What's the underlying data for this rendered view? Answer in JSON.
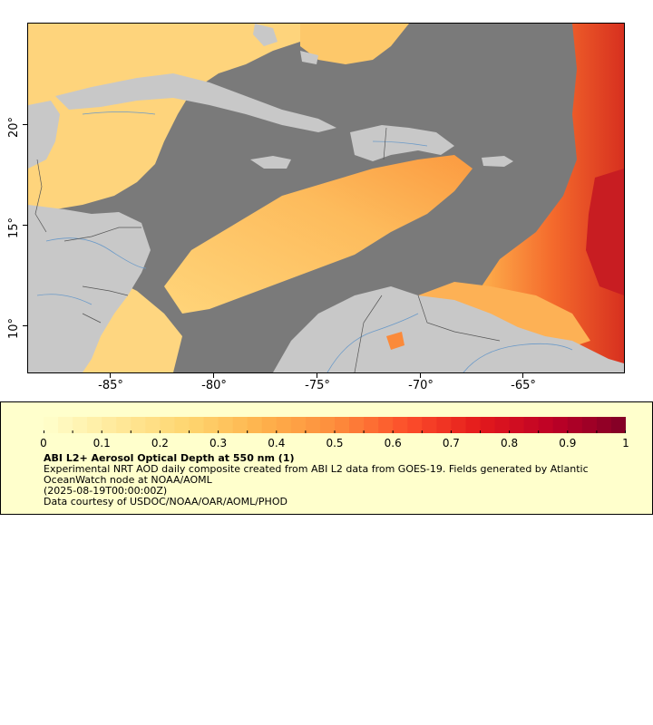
{
  "map": {
    "x_ticks": [
      "-85°",
      "-80°",
      "-75°",
      "-70°",
      "-65°"
    ],
    "y_ticks": [
      "20°",
      "15°",
      "10°"
    ],
    "colors": {
      "ocean_nodata": "#7a7a7a",
      "land": "#c8c8c8",
      "low": "#ffe99a",
      "mid": "#fbb14a",
      "high": "#e0301e",
      "max": "#7f0026",
      "rivers": "#6b9ac8",
      "borders": "#666666"
    }
  },
  "legend": {
    "colorbar_labels": [
      "0",
      "0.1",
      "0.2",
      "0.3",
      "0.4",
      "0.5",
      "0.6",
      "0.7",
      "0.8",
      "0.9",
      "1"
    ],
    "colorbar_range": [
      0,
      1
    ],
    "colorbar_colors": [
      "#ffffcc",
      "#ffe99a",
      "#fed56f",
      "#feb24c",
      "#fd8d3c",
      "#fc4e2a",
      "#e31a1c",
      "#bd0026",
      "#800026"
    ],
    "title": "ABI L2+ Aerosol Optical Depth at 550 nm (1)",
    "line1": "Experimental NRT AOD daily composite created from ABI L2 data from GOES-19. Fields generated by Atlantic",
    "line2": "OceanWatch node at NOAA/AOML",
    "line3": "(2025-08-19T00:00:00Z)",
    "line4": "Data courtesy of USDOC/NOAA/OAR/AOML/PHOD"
  }
}
